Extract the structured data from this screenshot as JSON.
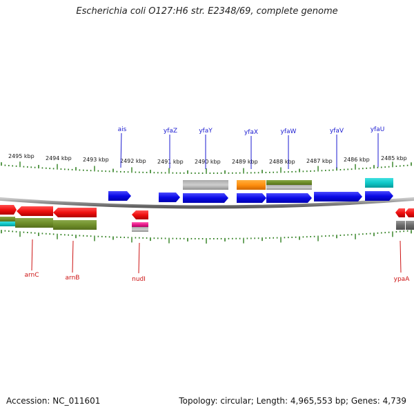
{
  "title": "Escherichia coli O127:H6 str. E2348/69, complete genome",
  "accession": "Accession: NC_011601",
  "summary": "Topology: circular; Length: 4,965,553 bp; Genes: 4,739",
  "colors": {
    "backbone": "#8c8c8c",
    "tick": "#2f7f1f",
    "forward_label": "#1a1ad0",
    "reverse_label": "#cc1111",
    "cds": "#1010e0",
    "cds_reverse": "#e01010"
  },
  "scale": {
    "labels": [
      "2495 kbp",
      "2494 kbp",
      "2493 kbp",
      "2492 kbp",
      "2491 kbp",
      "2490 kbp",
      "2489 kbp",
      "2488 kbp",
      "2487 kbp",
      "2486 kbp",
      "2485 kbp"
    ]
  },
  "forward_genes": [
    {
      "name": "ais"
    },
    {
      "name": "yfaZ"
    },
    {
      "name": "yfaY"
    },
    {
      "name": "yfaX"
    },
    {
      "name": "yfaW"
    },
    {
      "name": "yfaV"
    },
    {
      "name": "yfaU"
    }
  ],
  "reverse_genes": [
    {
      "name": "arnC"
    },
    {
      "name": "arnB"
    },
    {
      "name": "nudI"
    },
    {
      "name": "ypaA"
    }
  ]
}
